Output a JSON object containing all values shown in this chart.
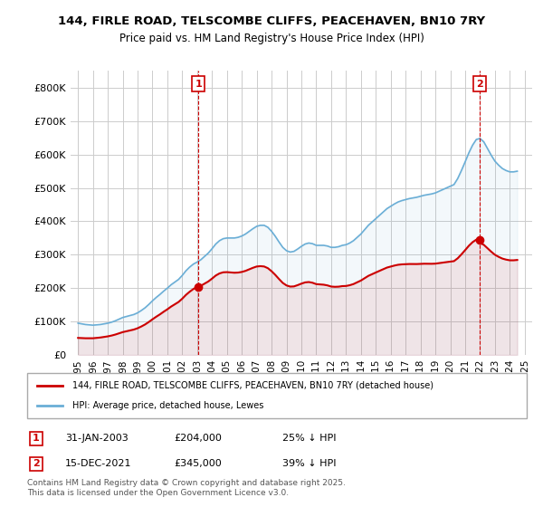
{
  "title_line1": "144, FIRLE ROAD, TELSCOMBE CLIFFS, PEACEHAVEN, BN10 7RY",
  "title_line2": "Price paid vs. HM Land Registry's House Price Index (HPI)",
  "ylabel": "",
  "xlabel": "",
  "hpi_color": "#6aaed6",
  "price_color": "#cc0000",
  "background_color": "#ffffff",
  "grid_color": "#cccccc",
  "ylim": [
    0,
    850000
  ],
  "ytick_labels": [
    "£0",
    "£100K",
    "£200K",
    "£300K",
    "£400K",
    "£500K",
    "£600K",
    "£700K",
    "£800K"
  ],
  "ytick_values": [
    0,
    100000,
    200000,
    300000,
    400000,
    500000,
    600000,
    700000,
    800000
  ],
  "legend_label_price": "144, FIRLE ROAD, TELSCOMBE CLIFFS, PEACEHAVEN, BN10 7RY (detached house)",
  "legend_label_hpi": "HPI: Average price, detached house, Lewes",
  "marker1_date": "31-JAN-2003",
  "marker1_price": 204000,
  "marker1_text": "25% ↓ HPI",
  "marker2_date": "15-DEC-2021",
  "marker2_price": 345000,
  "marker2_text": "39% ↓ HPI",
  "footer": "Contains HM Land Registry data © Crown copyright and database right 2025.\nThis data is licensed under the Open Government Licence v3.0.",
  "hpi_years": [
    1995.0,
    1995.25,
    1995.5,
    1995.75,
    1996.0,
    1996.25,
    1996.5,
    1996.75,
    1997.0,
    1997.25,
    1997.5,
    1997.75,
    1998.0,
    1998.25,
    1998.5,
    1998.75,
    1999.0,
    1999.25,
    1999.5,
    1999.75,
    2000.0,
    2000.25,
    2000.5,
    2000.75,
    2001.0,
    2001.25,
    2001.5,
    2001.75,
    2002.0,
    2002.25,
    2002.5,
    2002.75,
    2003.0,
    2003.25,
    2003.5,
    2003.75,
    2004.0,
    2004.25,
    2004.5,
    2004.75,
    2005.0,
    2005.25,
    2005.5,
    2005.75,
    2006.0,
    2006.25,
    2006.5,
    2006.75,
    2007.0,
    2007.25,
    2007.5,
    2007.75,
    2008.0,
    2008.25,
    2008.5,
    2008.75,
    2009.0,
    2009.25,
    2009.5,
    2009.75,
    2010.0,
    2010.25,
    2010.5,
    2010.75,
    2011.0,
    2011.25,
    2011.5,
    2011.75,
    2012.0,
    2012.25,
    2012.5,
    2012.75,
    2013.0,
    2013.25,
    2013.5,
    2013.75,
    2014.0,
    2014.25,
    2014.5,
    2014.75,
    2015.0,
    2015.25,
    2015.5,
    2015.75,
    2016.0,
    2016.25,
    2016.5,
    2016.75,
    2017.0,
    2017.25,
    2017.5,
    2017.75,
    2018.0,
    2018.25,
    2018.5,
    2018.75,
    2019.0,
    2019.25,
    2019.5,
    2019.75,
    2020.0,
    2020.25,
    2020.5,
    2020.75,
    2021.0,
    2021.25,
    2021.5,
    2021.75,
    2022.0,
    2022.25,
    2022.5,
    2022.75,
    2023.0,
    2023.25,
    2023.5,
    2023.75,
    2024.0,
    2024.25,
    2024.5
  ],
  "hpi_values": [
    95000,
    93000,
    91000,
    90000,
    89000,
    90000,
    91000,
    93000,
    95000,
    98000,
    102000,
    107000,
    112000,
    115000,
    118000,
    121000,
    126000,
    133000,
    141000,
    151000,
    162000,
    172000,
    181000,
    191000,
    200000,
    210000,
    218000,
    226000,
    238000,
    252000,
    263000,
    272000,
    278000,
    285000,
    295000,
    305000,
    318000,
    332000,
    342000,
    348000,
    350000,
    350000,
    350000,
    352000,
    356000,
    362000,
    370000,
    378000,
    385000,
    388000,
    388000,
    382000,
    370000,
    355000,
    338000,
    322000,
    312000,
    308000,
    310000,
    317000,
    325000,
    332000,
    335000,
    333000,
    328000,
    328000,
    328000,
    326000,
    322000,
    322000,
    324000,
    328000,
    330000,
    335000,
    342000,
    352000,
    362000,
    375000,
    388000,
    398000,
    408000,
    418000,
    428000,
    438000,
    445000,
    452000,
    458000,
    462000,
    465000,
    468000,
    470000,
    472000,
    475000,
    478000,
    480000,
    482000,
    485000,
    490000,
    495000,
    500000,
    505000,
    510000,
    528000,
    552000,
    578000,
    605000,
    628000,
    645000,
    648000,
    638000,
    618000,
    598000,
    580000,
    568000,
    558000,
    552000,
    548000,
    548000,
    550000
  ],
  "price_years": [
    2003.08,
    2021.96
  ],
  "price_values": [
    204000,
    345000
  ],
  "marker1_x": 2003.08,
  "marker1_y": 204000,
  "marker2_x": 2021.96,
  "marker2_y": 345000,
  "xmin": 1994.5,
  "xmax": 2025.5
}
